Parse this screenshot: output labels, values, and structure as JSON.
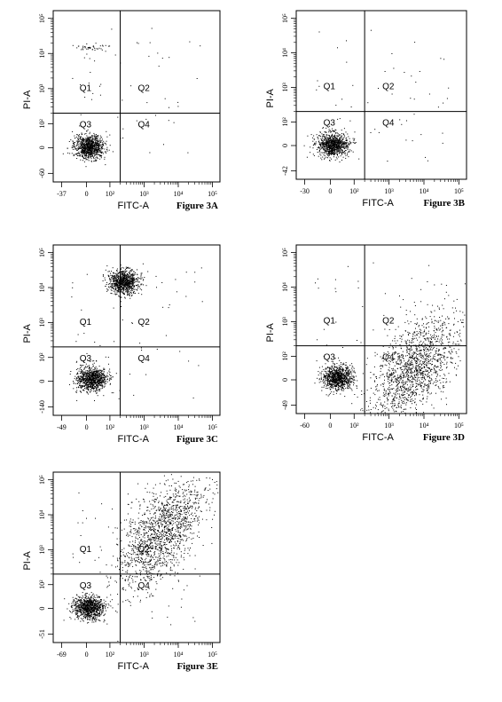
{
  "chart_data": [
    {
      "type": "scatter",
      "figure_label": "Figure 3A",
      "xlabel": "FITC-A",
      "ylabel": "PI-A",
      "x_ticks": [
        "-37",
        "0",
        "10²",
        "10³",
        "10⁴",
        "10⁵"
      ],
      "y_ticks": [
        "-60",
        "0",
        "10²",
        "10³",
        "10⁴",
        "10⁵"
      ],
      "quadrants": [
        "Q1",
        "Q2",
        "Q3",
        "Q4"
      ],
      "quadrant_gates": {
        "x": 200,
        "y": 200
      },
      "populations": [
        {
          "name": "",
          "x_center": 10,
          "y_center": 5,
          "spread": "dense"
        },
        {
          "name": "",
          "x_center": 20,
          "y_center": 15000,
          "spread": "small"
        }
      ]
    },
    {
      "type": "scatter",
      "figure_label": "Figure 3B",
      "xlabel": "FITC-A",
      "ylabel": "PI-A",
      "x_ticks": [
        "-30",
        "0",
        "10²",
        "10³",
        "10⁴",
        "10⁵"
      ],
      "y_ticks": [
        "-42",
        "0",
        "10²",
        "10³",
        "10⁴",
        "10⁵"
      ],
      "quadrants": [
        "Q1",
        "Q2",
        "Q3",
        "Q4"
      ],
      "quadrant_gates": {
        "x": 200,
        "y": 200
      },
      "populations": [
        {
          "name": "",
          "x_center": 10,
          "y_center": 5,
          "spread": "dense"
        }
      ]
    },
    {
      "type": "scatter",
      "figure_label": "Figure 3C",
      "xlabel": "FITC-A",
      "ylabel": "PI-A",
      "x_ticks": [
        "-49",
        "0",
        "10²",
        "10³",
        "10⁴",
        "10⁵"
      ],
      "y_ticks": [
        "-140",
        "0",
        "10²",
        "10³",
        "10⁴",
        "10⁵"
      ],
      "quadrants": [
        "Q1",
        "Q2",
        "Q3",
        "Q4"
      ],
      "quadrant_gates": {
        "x": 200,
        "y": 200
      },
      "populations": [
        {
          "name": "",
          "x_center": 20,
          "y_center": 10,
          "spread": "dense"
        },
        {
          "name": "",
          "x_center": 250,
          "y_center": 15000,
          "spread": "dense"
        }
      ]
    },
    {
      "type": "scatter",
      "figure_label": "Figure 3D",
      "xlabel": "FITC-A",
      "ylabel": "PI-A",
      "x_ticks": [
        "-60",
        "0",
        "10²",
        "10³",
        "10⁴",
        "10⁵"
      ],
      "y_ticks": [
        "-49",
        "0",
        "10²",
        "10³",
        "10⁴",
        "10⁵"
      ],
      "quadrants": [
        "Q1",
        "Q2",
        "Q3",
        "Q4"
      ],
      "quadrant_gates": {
        "x": 200,
        "y": 200
      },
      "populations": [
        {
          "name": "",
          "x_center": 30,
          "y_center": 10,
          "spread": "dense"
        },
        {
          "name": "",
          "x_center": 5000,
          "y_center": 50,
          "spread": "wide"
        }
      ]
    },
    {
      "type": "scatter",
      "figure_label": "Figure 3E",
      "xlabel": "FITC-A",
      "ylabel": "PI-A",
      "x_ticks": [
        "-69",
        "0",
        "10²",
        "10³",
        "10⁴",
        "10⁵"
      ],
      "y_ticks": [
        "-51",
        "0",
        "10²",
        "10³",
        "10⁴",
        "10⁵"
      ],
      "quadrants": [
        "Q1",
        "Q2",
        "Q3",
        "Q4"
      ],
      "quadrant_gates": {
        "x": 200,
        "y": 200
      },
      "populations": [
        {
          "name": "",
          "x_center": 10,
          "y_center": 5,
          "spread": "dense"
        },
        {
          "name": "",
          "x_center": 3000,
          "y_center": 3000,
          "spread": "wide"
        }
      ]
    }
  ]
}
